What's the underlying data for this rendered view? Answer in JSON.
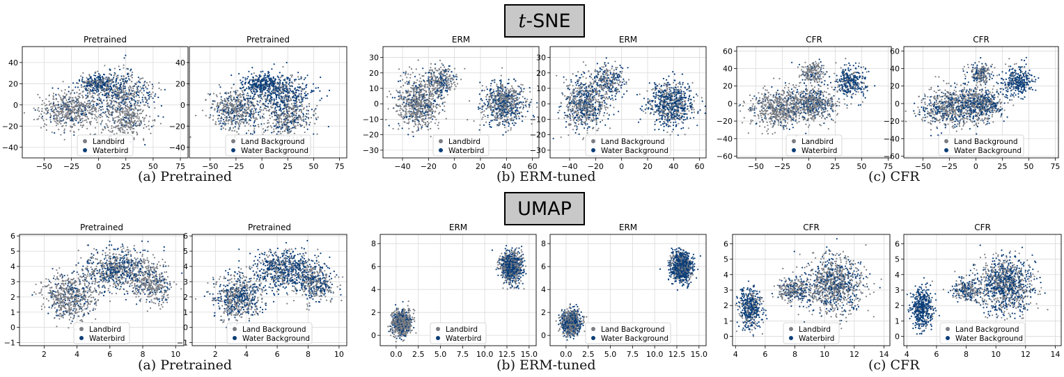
{
  "sections": {
    "tsne": {
      "title_italic": "t",
      "title_rest": "-SNE"
    },
    "umap": {
      "title": "UMAP"
    }
  },
  "captions": {
    "a": "(a)  Pretrained",
    "b": "(b)  ERM-tuned",
    "c": "(c)  CFR"
  },
  "colors": {
    "land": "#7a7d83",
    "water": "#0a3d78"
  },
  "chart_data": [
    {
      "id": "tsne-pre-bird",
      "type": "scatter",
      "title": "Pretrained",
      "xlim": [
        -70,
        82
      ],
      "ylim": [
        -50,
        55
      ],
      "xticks": [
        -50,
        -25,
        0,
        25,
        50,
        75
      ],
      "yticks": [
        -40,
        -20,
        0,
        20,
        40
      ],
      "grid": true,
      "legend_placement": "lower-center",
      "series": [
        {
          "name": "Landbird",
          "color": "#7a7d83"
        },
        {
          "name": "Waterbird",
          "color": "#0a3d78"
        }
      ]
    },
    {
      "id": "tsne-pre-bg",
      "type": "scatter",
      "title": "Pretrained",
      "xlim": [
        -70,
        82
      ],
      "ylim": [
        -50,
        55
      ],
      "xticks": [
        -50,
        -25,
        0,
        25,
        50,
        75
      ],
      "yticks": [
        -40,
        -20,
        0,
        20,
        40
      ],
      "grid": true,
      "legend_placement": "lower-center",
      "series": [
        {
          "name": "Land Background",
          "color": "#7a7d83"
        },
        {
          "name": "Water Background",
          "color": "#0a3d78"
        }
      ]
    },
    {
      "id": "tsne-erm-bird",
      "type": "scatter",
      "title": "ERM",
      "xlim": [
        -55,
        65
      ],
      "ylim": [
        -35,
        37
      ],
      "xticks": [
        -40,
        -20,
        0,
        20,
        40,
        60
      ],
      "yticks": [
        -30,
        -20,
        -10,
        0,
        10,
        20,
        30
      ],
      "grid": true,
      "legend_placement": "lower-center",
      "series": [
        {
          "name": "Landbird",
          "color": "#7a7d83"
        },
        {
          "name": "Waterbird",
          "color": "#0a3d78"
        }
      ]
    },
    {
      "id": "tsne-erm-bg",
      "type": "scatter",
      "title": "ERM",
      "xlim": [
        -55,
        65
      ],
      "ylim": [
        -35,
        37
      ],
      "xticks": [
        -40,
        -20,
        0,
        20,
        40,
        60
      ],
      "yticks": [
        -30,
        -20,
        -10,
        0,
        10,
        20,
        30
      ],
      "grid": true,
      "legend_placement": "lower-center",
      "series": [
        {
          "name": "Land Background",
          "color": "#7a7d83"
        },
        {
          "name": "Water Background",
          "color": "#0a3d78"
        }
      ]
    },
    {
      "id": "tsne-cfr-bird",
      "type": "scatter",
      "title": "CFR",
      "xlim": [
        -68,
        78
      ],
      "ylim": [
        -62,
        65
      ],
      "xticks": [
        -50,
        -25,
        0,
        25,
        50,
        75
      ],
      "yticks": [
        -60,
        -40,
        -20,
        0,
        20,
        40,
        60
      ],
      "grid": true,
      "legend_placement": "lower-center",
      "series": [
        {
          "name": "Landbird",
          "color": "#7a7d83"
        },
        {
          "name": "Waterbird",
          "color": "#0a3d78"
        }
      ]
    },
    {
      "id": "tsne-cfr-bg",
      "type": "scatter",
      "title": "CFR",
      "xlim": [
        -68,
        78
      ],
      "ylim": [
        -62,
        65
      ],
      "xticks": [
        -50,
        -25,
        0,
        25,
        50,
        75
      ],
      "yticks": [
        -60,
        -40,
        -20,
        0,
        20,
        40,
        60
      ],
      "grid": true,
      "legend_placement": "lower-center",
      "series": [
        {
          "name": "Land Background",
          "color": "#7a7d83"
        },
        {
          "name": "Water Background",
          "color": "#0a3d78"
        }
      ]
    },
    {
      "id": "umap-pre-bird",
      "type": "scatter",
      "title": "Pretrained",
      "xlim": [
        0.5,
        10.5
      ],
      "ylim": [
        -1.2,
        6.1
      ],
      "xticks": [
        2,
        4,
        6,
        8,
        10
      ],
      "yticks": [
        -1,
        0,
        1,
        2,
        3,
        4,
        5,
        6
      ],
      "grid": true,
      "legend_placement": "lower-center",
      "series": [
        {
          "name": "Landbird",
          "color": "#7a7d83"
        },
        {
          "name": "Waterbird",
          "color": "#0a3d78"
        }
      ]
    },
    {
      "id": "umap-pre-bg",
      "type": "scatter",
      "title": "Pretrained",
      "xlim": [
        0.5,
        10.5
      ],
      "ylim": [
        -1.2,
        6.1
      ],
      "xticks": [
        2,
        4,
        6,
        8,
        10
      ],
      "yticks": [
        -1,
        0,
        1,
        2,
        3,
        4,
        5,
        6
      ],
      "grid": true,
      "legend_placement": "lower-center",
      "series": [
        {
          "name": "Land Background",
          "color": "#7a7d83"
        },
        {
          "name": "Water Background",
          "color": "#0a3d78"
        }
      ]
    },
    {
      "id": "umap-erm-bird",
      "type": "scatter",
      "title": "ERM",
      "xlim": [
        -1.8,
        15.8
      ],
      "ylim": [
        -0.9,
        8.8
      ],
      "xticks": [
        0.0,
        2.5,
        5.0,
        7.5,
        10.0,
        12.5,
        15.0
      ],
      "yticks": [
        0,
        2,
        4,
        6,
        8
      ],
      "grid": true,
      "legend_placement": "lower-center",
      "series": [
        {
          "name": "Landbird",
          "color": "#7a7d83"
        },
        {
          "name": "Waterbird",
          "color": "#0a3d78"
        }
      ]
    },
    {
      "id": "umap-erm-bg",
      "type": "scatter",
      "title": "ERM",
      "xlim": [
        -1.8,
        15.8
      ],
      "ylim": [
        -0.9,
        8.8
      ],
      "xticks": [
        0.0,
        2.5,
        5.0,
        7.5,
        10.0,
        12.5,
        15.0
      ],
      "yticks": [
        0,
        2,
        4,
        6,
        8
      ],
      "grid": true,
      "legend_placement": "lower-center",
      "series": [
        {
          "name": "Land Background",
          "color": "#7a7d83"
        },
        {
          "name": "Water Background",
          "color": "#0a3d78"
        }
      ]
    },
    {
      "id": "umap-cfr-bird",
      "type": "scatter",
      "title": "CFR",
      "xlim": [
        3.8,
        14.4
      ],
      "ylim": [
        -0.6,
        6.6
      ],
      "xticks": [
        4,
        6,
        8,
        10,
        12,
        14
      ],
      "yticks": [
        0,
        1,
        2,
        3,
        4,
        5,
        6
      ],
      "grid": true,
      "legend_placement": "lower-center",
      "series": [
        {
          "name": "Landbird",
          "color": "#7a7d83"
        },
        {
          "name": "Waterbird",
          "color": "#0a3d78"
        }
      ]
    },
    {
      "id": "umap-cfr-bg",
      "type": "scatter",
      "title": "CFR",
      "xlim": [
        3.8,
        14.4
      ],
      "ylim": [
        -0.6,
        6.6
      ],
      "xticks": [
        4,
        6,
        8,
        10,
        12,
        14
      ],
      "yticks": [
        0,
        1,
        2,
        3,
        4,
        5,
        6
      ],
      "grid": true,
      "legend_placement": "lower-center",
      "series": [
        {
          "name": "Land Background",
          "color": "#7a7d83"
        },
        {
          "name": "Water Background",
          "color": "#0a3d78"
        }
      ]
    }
  ]
}
